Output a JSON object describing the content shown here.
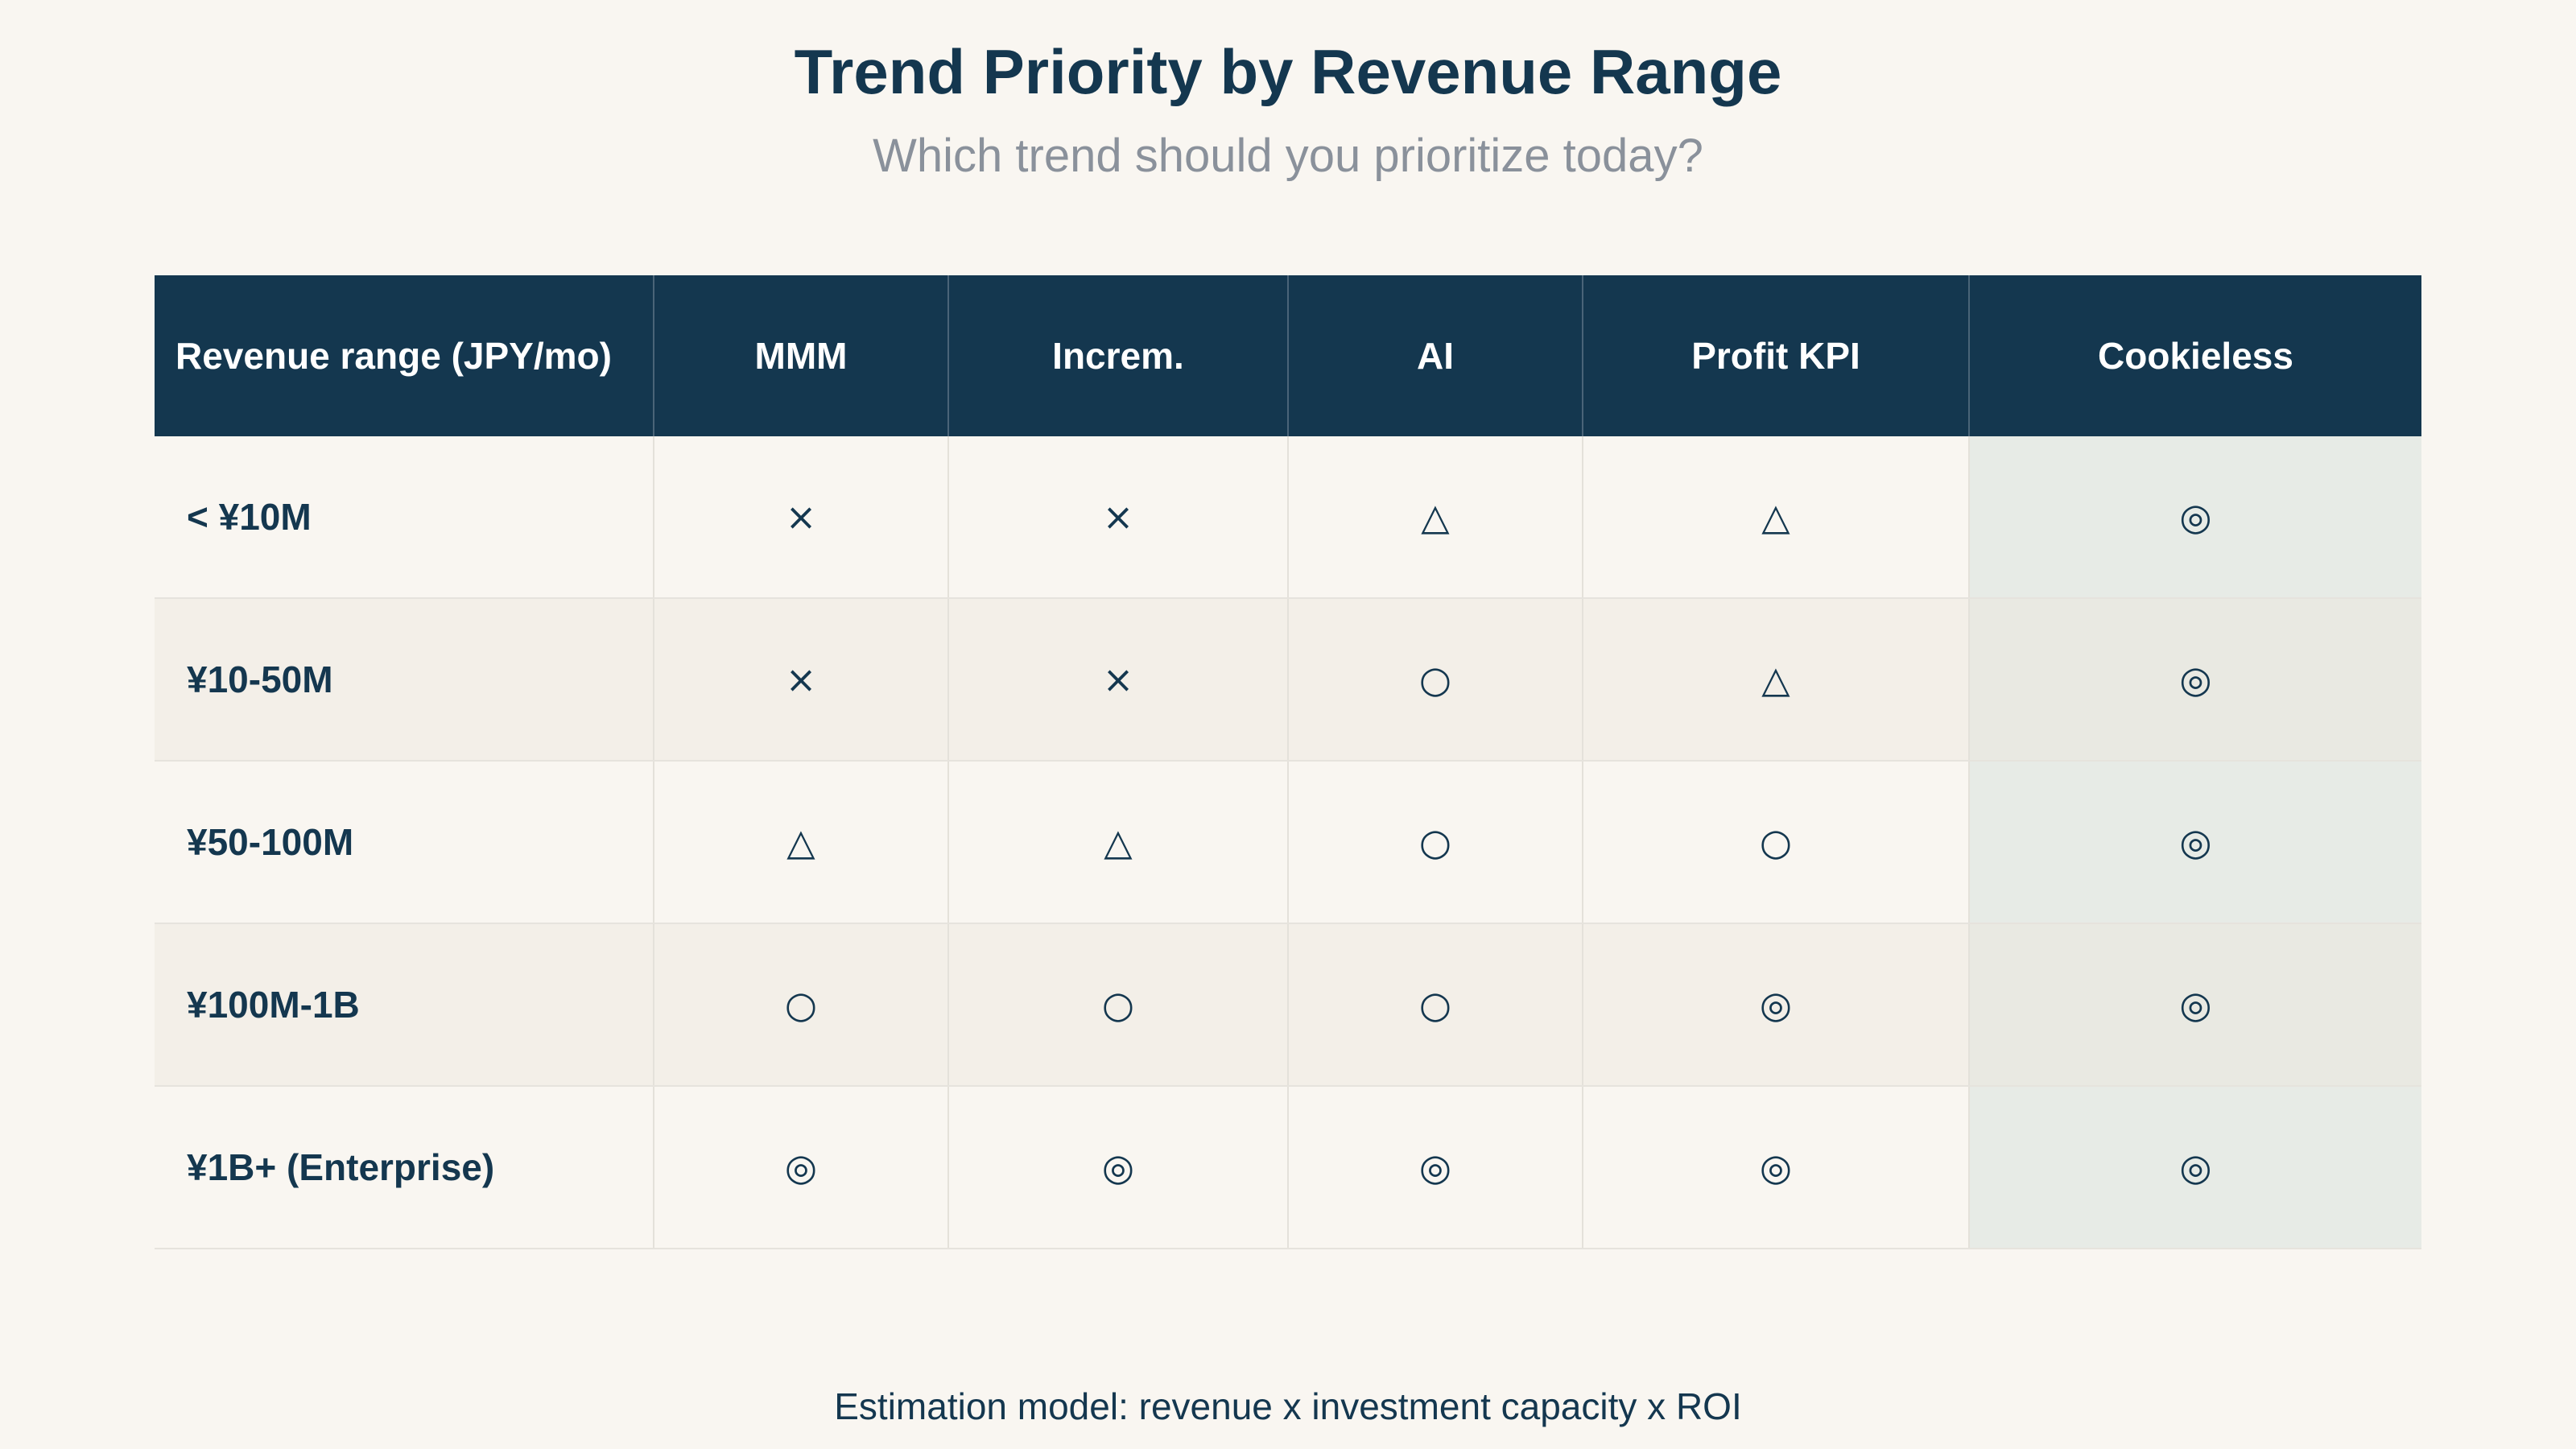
{
  "chart_data": {
    "type": "table",
    "title": "Trend Priority by Revenue Range",
    "subtitle": "Which trend should you prioritize today?",
    "columns": [
      "Revenue range (JPY/mo)",
      "MMM",
      "Increm.",
      "AI",
      "Profit KPI",
      "Cookieless"
    ],
    "highlight_column": "Cookieless",
    "rows": [
      {
        "label": "< ¥10M",
        "cells": [
          "×",
          "×",
          "△",
          "△",
          "◎"
        ]
      },
      {
        "label": "¥10-50M",
        "cells": [
          "×",
          "×",
          "○",
          "△",
          "◎"
        ]
      },
      {
        "label": "¥50-100M",
        "cells": [
          "△",
          "△",
          "○",
          "○",
          "◎"
        ]
      },
      {
        "label": "¥100M-1B",
        "cells": [
          "○",
          "○",
          "○",
          "◎",
          "◎"
        ]
      },
      {
        "label": "¥1B+ (Enterprise)",
        "cells": [
          "◎",
          "◎",
          "◎",
          "◎",
          "◎"
        ]
      }
    ],
    "footnote": "Estimation model: revenue x investment capacity x ROI"
  },
  "colors": {
    "background": "#f9f6f1",
    "header": "#14374f",
    "text": "#14374f",
    "subtitle": "#8a919b",
    "highlight": "#e7ebe6"
  }
}
